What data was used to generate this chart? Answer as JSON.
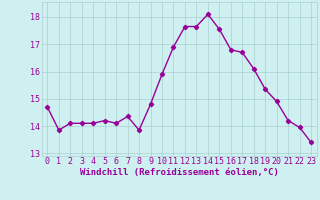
{
  "x": [
    0,
    1,
    2,
    3,
    4,
    5,
    6,
    7,
    8,
    9,
    10,
    11,
    12,
    13,
    14,
    15,
    16,
    17,
    18,
    19,
    20,
    21,
    22,
    23
  ],
  "y": [
    14.7,
    13.85,
    14.1,
    14.1,
    14.1,
    14.2,
    14.1,
    14.35,
    13.85,
    14.8,
    15.9,
    16.9,
    17.65,
    17.65,
    18.1,
    17.55,
    16.8,
    16.7,
    16.1,
    15.35,
    14.9,
    14.2,
    13.95,
    13.4
  ],
  "line_color": "#990099",
  "marker": "D",
  "markersize": 2.2,
  "linewidth": 1.0,
  "bg_color": "#cff0f0",
  "grid_color": "#aacece",
  "xlabel": "Windchill (Refroidissement éolien,°C)",
  "xlabel_color": "#990099",
  "xlabel_fontsize": 6.5,
  "tick_color": "#990099",
  "tick_fontsize": 6.0,
  "ytick_labels": [
    "13",
    "14",
    "15",
    "16",
    "17",
    "18"
  ],
  "ytick_vals": [
    13,
    14,
    15,
    16,
    17,
    18
  ],
  "ylim": [
    12.9,
    18.55
  ],
  "xlim": [
    -0.5,
    23.5
  ],
  "xtick_labels": [
    "0",
    "1",
    "2",
    "3",
    "4",
    "5",
    "6",
    "7",
    "8",
    "9",
    "10",
    "11",
    "12",
    "13",
    "14",
    "15",
    "16",
    "17",
    "18",
    "19",
    "20",
    "21",
    "22",
    "23"
  ]
}
